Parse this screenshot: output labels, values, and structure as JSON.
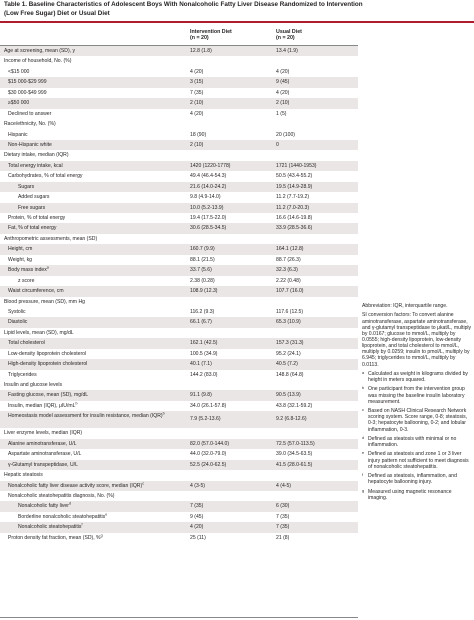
{
  "title": "Table 1. Baseline Characteristics of Adolescent Boys With Nonalcoholic Fatty Liver Disease Randomized to Intervention (Low Free Sugar) Diet or Usual Diet",
  "header": {
    "col1_line1": "Intervention Diet",
    "col1_line2": "(n = 20)",
    "col2_line1": "Usual Diet",
    "col2_line2": "(n = 20)"
  },
  "rows": [
    {
      "label": "Age at screening, mean (SD), y",
      "v1": "12.8 (1.8)",
      "v2": "13.4 (1.9)"
    },
    {
      "label": "Income of household, No. (%)",
      "v1": "",
      "v2": ""
    },
    {
      "label": "<$15 000",
      "v1": "4 (20)",
      "v2": "4 (20)"
    },
    {
      "label": "$15 000-$29 999",
      "v1": "3 (15)",
      "v2": "9 (45)"
    },
    {
      "label": "$30 000-$49 999",
      "v1": "7 (35)",
      "v2": "4 (20)"
    },
    {
      "label": "≥$50 000",
      "v1": "2 (10)",
      "v2": "2 (10)"
    },
    {
      "label": "Declined to answer",
      "v1": "4 (20)",
      "v2": "1 (5)"
    },
    {
      "label": "Race/ethnicity, No. (%)",
      "v1": "",
      "v2": ""
    },
    {
      "label": "Hispanic",
      "v1": "18 (90)",
      "v2": "20 (100)"
    },
    {
      "label": "Non-Hispanic white",
      "v1": "2 (10)",
      "v2": "0"
    },
    {
      "label": "Dietary intake, median (IQR)",
      "v1": "",
      "v2": ""
    },
    {
      "label": "Total energy intake, kcal",
      "v1": "1420 (1220-1778)",
      "v2": "1721 (1440-1953)"
    },
    {
      "label": "Carbohydrates, % of total energy",
      "v1": "49.4 (46.4-54.3)",
      "v2": "50.5 (43.4-55.2)"
    },
    {
      "label": "Sugars",
      "v1": "21.6 (14.0-24.2)",
      "v2": "19.5 (14.9-28.9)"
    },
    {
      "label": "Added sugars",
      "v1": "9.8 (4.9-14.0)",
      "v2": "11.2 (7.7-19.2)"
    },
    {
      "label": "Free sugars",
      "v1": "10.0 (5.2-13.9)",
      "v2": "11.2 (7.0-20.3)"
    },
    {
      "label": "Protein, % of total energy",
      "v1": "19.4 (17.5-22.0)",
      "v2": "16.6 (14.6-19.8)"
    },
    {
      "label": "Fat, % of total energy",
      "v1": "30.6 (28.5-34.5)",
      "v2": "33.9 (28.5-36.6)"
    },
    {
      "label": "Anthropometric assessments, mean (SD)",
      "v1": "",
      "v2": ""
    },
    {
      "label": "Height, cm",
      "v1": "160.7 (9.9)",
      "v2": "164.1 (12.8)"
    },
    {
      "label": "Weight, kg",
      "v1": "88.1 (21.5)",
      "v2": "88.7 (26.3)"
    },
    {
      "label": "Body mass index",
      "mark": "a",
      "v1": "33.7 (5.6)",
      "v2": "32.3 (6.3)"
    },
    {
      "label": "z score",
      "v1": "2.38 (0.28)",
      "v2": "2.22 (0.48)"
    },
    {
      "label": "Waist circumference, cm",
      "v1": "108.9 (12.3)",
      "v2": "107.7 (16.0)"
    },
    {
      "label": "Blood pressure, mean (SD), mm Hg",
      "v1": "",
      "v2": ""
    },
    {
      "label": "Systolic",
      "v1": "116.2 (9.3)",
      "v2": "117.6 (12.5)"
    },
    {
      "label": "Diastolic",
      "v1": "66.1 (6.7)",
      "v2": "65.3 (10.9)"
    },
    {
      "label": "Lipid levels, mean (SD), mg/dL",
      "v1": "",
      "v2": ""
    },
    {
      "label": "Total cholesterol",
      "v1": "162.1 (42.5)",
      "v2": "157.3 (31.3)"
    },
    {
      "label": "Low-density lipoprotein cholesterol",
      "v1": "100.5 (34.9)",
      "v2": "95.2 (24.1)"
    },
    {
      "label": "High-density lipoprotein cholesterol",
      "v1": "40.1 (7.1)",
      "v2": "40.5 (7.2)"
    },
    {
      "label": "Triglycerides",
      "v1": "144.2 (83.0)",
      "v2": "148.8 (64.8)"
    },
    {
      "label": "Insulin and glucose levels",
      "v1": "",
      "v2": ""
    },
    {
      "label": "Fasting glucose, mean (SD), mg/dL",
      "v1": "91.1 (9.8)",
      "v2": "90.5 (13.9)"
    },
    {
      "label": "Insulin, median (IQR), μIU/mL",
      "mark": "b",
      "v1": "34.0 (26.1-57.8)",
      "v2": "43.8 (32.1-59.2)"
    },
    {
      "label": "Homeostasis model assessment for insulin resistance, median (IQR)",
      "mark": "b",
      "v1": "7.9 (5.2-13.6)",
      "v2": "9.2 (6.8-12.6)"
    },
    {
      "label": "Liver enzyme levels, median (IQR)",
      "v1": "",
      "v2": ""
    },
    {
      "label": "Alanine aminotransferase, U/L",
      "v1": "82.0 (57.0-144.0)",
      "v2": "72.5 (57.0-113.5)"
    },
    {
      "label": "Aspartate aminotransferase, U/L",
      "v1": "44.0 (32.0-79.0)",
      "v2": "39.0 (34.5-63.5)"
    },
    {
      "label": "γ-Glutamyl transpeptidase, U/L",
      "v1": "52.5 (24.0-62.5)",
      "v2": "41.5 (28.0-61.5)"
    },
    {
      "label": "Hepatic steatosis",
      "v1": "",
      "v2": ""
    },
    {
      "label": "Nonalcoholic fatty liver disease activity score, median (IQR)",
      "mark": "c",
      "v1": "4 (3-5)",
      "v2": "4 (4-5)"
    },
    {
      "label": "Nonalcoholic steatohepatitis diagnosis, No. (%)",
      "v1": "",
      "v2": ""
    },
    {
      "label": "Nonalcoholic fatty liver",
      "mark": "d",
      "v1": "7 (35)",
      "v2": "6 (30)"
    },
    {
      "label": "Borderline nonalcoholic steatohepatitis",
      "mark": "e",
      "v1": "9 (45)",
      "v2": "7 (35)"
    },
    {
      "label": "Nonalcoholic steatohepatitis",
      "mark": "f",
      "v1": "4 (20)",
      "v2": "7 (35)"
    },
    {
      "label": "Proton density fat fraction, mean (SD), %",
      "mark": "g",
      "v1": "25 (11)",
      "v2": "21 (8)"
    }
  ],
  "notes": {
    "abbreviation": "Abbreviation: IQR, interquartile range.",
    "conversion": "SI conversion factors: To convert alanine aminotransferase, aspartate aminotransferase, and γ-glutamyl transpeptidase to μkat/L, multiply by 0.0167; glucose to mmol/L, multiply by 0.0555; high-density lipoprotein, low-density lipoprotein, and total cholesterol to mmol/L, multiply by 0.0259; insulin to pmol/L, multiply by 6.945; triglycerides to mmol/L, multiply by 0.0113.",
    "footnotes": [
      {
        "mark": "a",
        "text": "Calculated as weight in kilograms divided by height in meters squared."
      },
      {
        "mark": "b",
        "text": "One participant from the intervention group was missing the baseline insulin laboratory measurement."
      },
      {
        "mark": "c",
        "text": "Based on NASH Clinical Research Network scoring system. Score range, 0-8; steatosis, 0-3; hepatocyte ballooning, 0-2; and lobular inflammation, 0-3."
      },
      {
        "mark": "d",
        "text": "Defined as steatosis with minimal or no inflammation."
      },
      {
        "mark": "e",
        "text": "Defined as steatosis and zone 1 or 3 liver injury pattern not sufficient to meet diagnosis of nonalcoholic steatohepatitis."
      },
      {
        "mark": "f",
        "text": "Defined as steatosis, inflammation, and hepatocyte ballooning injury."
      },
      {
        "mark": "g",
        "text": "Measured using magnetic resonance imaging."
      }
    ]
  }
}
